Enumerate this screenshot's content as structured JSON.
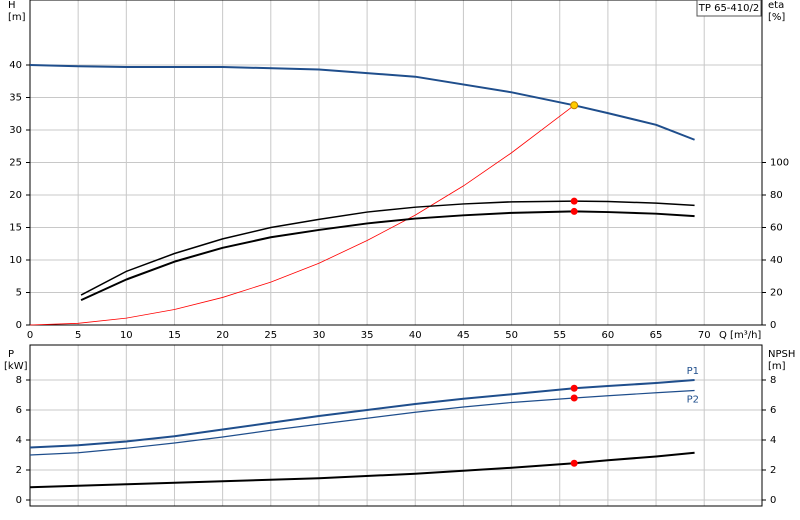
{
  "chart_data": [
    {
      "type": "line",
      "title": "TP 65-410/2",
      "x_label": "Q [m³/h]",
      "y_label": "H",
      "y_unit": "[m]",
      "y2_label": "eta",
      "y2_unit": "[%]",
      "xlim": [
        0,
        76
      ],
      "xticks": [
        0,
        5,
        10,
        15,
        20,
        25,
        30,
        35,
        40,
        45,
        50,
        55,
        60,
        65,
        70
      ],
      "ylim": [
        0,
        50
      ],
      "yticks": [
        0,
        5,
        10,
        15,
        20,
        25,
        30,
        35,
        40
      ],
      "y2lim": [
        0,
        200
      ],
      "y2ticks": [
        0,
        20,
        40,
        60,
        80,
        100
      ],
      "grid": true,
      "series": [
        {
          "color": "#1f4e8c",
          "width": 2,
          "x": [
            0,
            5,
            10,
            20,
            30,
            40,
            50,
            56.5,
            60,
            65,
            69
          ],
          "values": [
            40,
            39.8,
            39.7,
            39.7,
            39.3,
            38.2,
            35.8,
            33.8,
            32.6,
            30.8,
            28.5
          ]
        },
        {
          "color": "#ff0000",
          "width": 0.8,
          "x": [
            0,
            5,
            10,
            15,
            20,
            25,
            30,
            35,
            40,
            45,
            50,
            56.5
          ],
          "values": [
            0,
            0.26,
            1.06,
            2.38,
            4.24,
            6.6,
            9.5,
            13,
            16.9,
            21.4,
            26.5,
            33.8
          ]
        },
        {
          "color": "#000000",
          "width": 1.5,
          "axis": "y2",
          "x": [
            5.3,
            10,
            15,
            20,
            25,
            30,
            35,
            40,
            45,
            50,
            56.5,
            60,
            65,
            69
          ],
          "values": [
            18.4,
            33,
            44,
            53,
            60,
            65,
            69.5,
            72.5,
            74.5,
            75.8,
            76.2,
            76,
            75,
            73.6
          ]
        },
        {
          "color": "#000000",
          "width": 2,
          "axis": "y2",
          "x": [
            5.3,
            10,
            15,
            20,
            25,
            30,
            35,
            40,
            45,
            50,
            56.5,
            60,
            65,
            69
          ],
          "values": [
            15.3,
            28,
            39,
            47.5,
            54,
            58.5,
            62.5,
            65.5,
            67.5,
            69,
            69.9,
            69.5,
            68.5,
            67
          ]
        },
        {
          "color": "#ffcc00",
          "marker": true,
          "x": [
            56.5
          ],
          "values": [
            33.8
          ]
        },
        {
          "color": "#ff0000",
          "marker": true,
          "axis": "y2",
          "x": [
            56.5
          ],
          "values": [
            76.2
          ]
        },
        {
          "color": "#ff0000",
          "marker": true,
          "axis": "y2",
          "x": [
            56.5
          ],
          "values": [
            69.9
          ]
        }
      ]
    },
    {
      "type": "line",
      "y_label": "P",
      "y_unit": "[kW]",
      "y2_label": "NPSH",
      "y2_unit": "[m]",
      "xlim": [
        0,
        76
      ],
      "ylim": [
        0,
        10
      ],
      "yticks": [
        0,
        2,
        4,
        6,
        8
      ],
      "y2lim": [
        0,
        10
      ],
      "y2ticks": [
        0,
        2,
        4,
        6,
        8
      ],
      "grid": true,
      "series": [
        {
          "name": "P1",
          "color": "#1f4e8c",
          "width": 2,
          "x": [
            0,
            5,
            10,
            15,
            20,
            25,
            30,
            35,
            40,
            45,
            50,
            56.5,
            60,
            65,
            69
          ],
          "values": [
            3.5,
            3.65,
            3.9,
            4.25,
            4.7,
            5.15,
            5.6,
            6.0,
            6.4,
            6.75,
            7.05,
            7.45,
            7.6,
            7.8,
            8.0
          ]
        },
        {
          "name": "P2",
          "color": "#1f4e8c",
          "width": 1.2,
          "x": [
            0,
            5,
            10,
            15,
            20,
            25,
            30,
            35,
            40,
            45,
            50,
            56.5,
            60,
            65,
            69
          ],
          "values": [
            3.0,
            3.15,
            3.45,
            3.8,
            4.2,
            4.65,
            5.05,
            5.45,
            5.85,
            6.2,
            6.5,
            6.8,
            6.95,
            7.15,
            7.3
          ]
        },
        {
          "color": "#000000",
          "width": 2,
          "axis": "y2",
          "x": [
            0,
            5,
            10,
            20,
            30,
            40,
            50,
            56.5,
            60,
            65,
            69
          ],
          "values": [
            0.85,
            0.95,
            1.05,
            1.25,
            1.45,
            1.75,
            2.15,
            2.45,
            2.65,
            2.9,
            3.15
          ]
        },
        {
          "color": "#ff0000",
          "marker": true,
          "x": [
            56.5
          ],
          "values": [
            7.45
          ]
        },
        {
          "color": "#ff0000",
          "marker": true,
          "x": [
            56.5
          ],
          "values": [
            6.8
          ]
        },
        {
          "color": "#ff0000",
          "marker": true,
          "axis": "y2",
          "x": [
            56.5
          ],
          "values": [
            2.45
          ]
        }
      ]
    }
  ]
}
